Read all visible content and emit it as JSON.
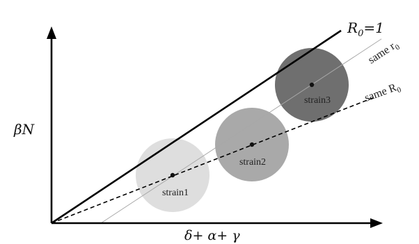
{
  "diagram": {
    "y_axis_label": "βN",
    "x_axis_label": "δ+ α+ γ",
    "lines": [
      {
        "id": "r0-threshold",
        "label_main": "R",
        "label_sub": "0",
        "label_tail": "=1",
        "style": "thick-solid"
      },
      {
        "id": "same-r0",
        "label_main": "same r",
        "label_sub": "0",
        "style": "thin-solid-grey"
      },
      {
        "id": "same-R0",
        "label_main": "same R",
        "label_sub": "0",
        "style": "dashed"
      }
    ],
    "strains": [
      {
        "label": "strain1",
        "color": "#dedede"
      },
      {
        "label": "strain2",
        "color": "#a9a9a9"
      },
      {
        "label": "strain3",
        "color": "#6f6f6f"
      }
    ],
    "colors": {
      "axis": "#000000",
      "threshold_line": "#000000",
      "same_r0_line": "#a8a8a8",
      "same_R0_line": "#000000",
      "center_dot": "#111111"
    }
  }
}
